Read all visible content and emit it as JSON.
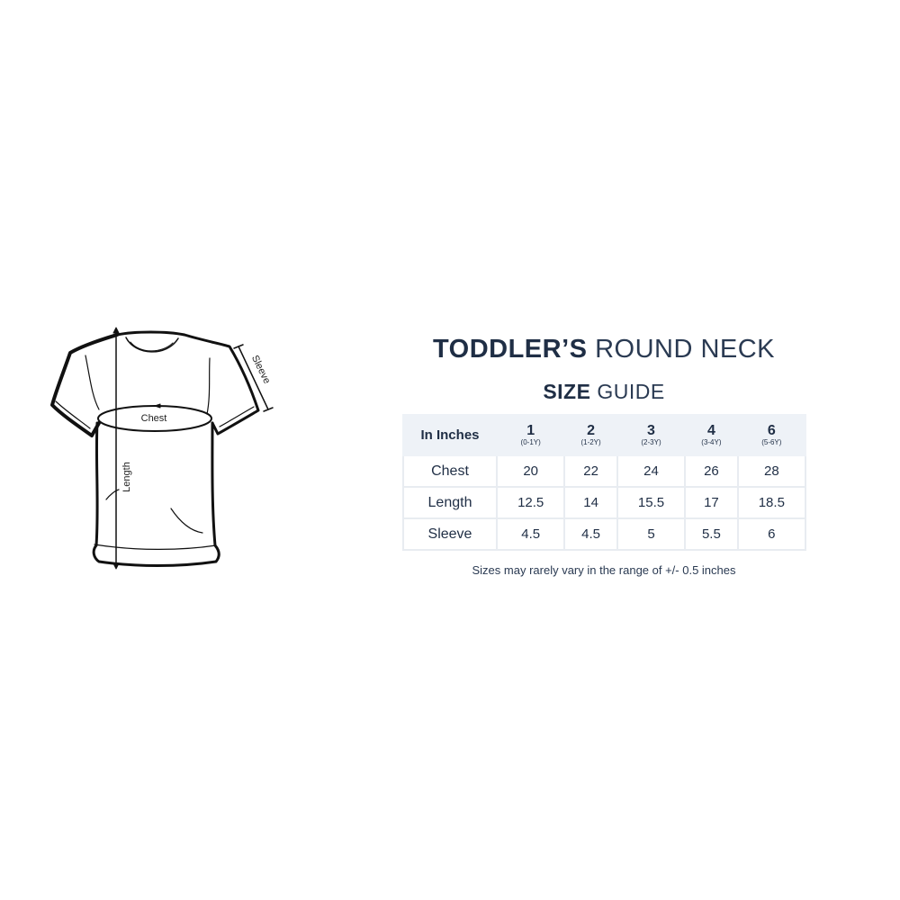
{
  "diagram": {
    "chest_label": "Chest",
    "length_label": "Length",
    "sleeve_label": "Sleeve"
  },
  "title": {
    "bold": "TODDLER’S",
    "light": "ROUND NECK"
  },
  "subtitle": {
    "bold": "SIZE",
    "light": "GUIDE"
  },
  "table": {
    "header": "In Inches",
    "sizes": [
      {
        "size": "1",
        "age": "(0-1Y)"
      },
      {
        "size": "2",
        "age": "(1-2Y)"
      },
      {
        "size": "3",
        "age": "(2-3Y)"
      },
      {
        "size": "4",
        "age": "(3-4Y)"
      },
      {
        "size": "6",
        "age": "(5-6Y)"
      }
    ],
    "rows": [
      {
        "label": "Chest",
        "values": [
          "20",
          "22",
          "24",
          "26",
          "28"
        ]
      },
      {
        "label": "Length",
        "values": [
          "12.5",
          "14",
          "15.5",
          "17",
          "18.5"
        ]
      },
      {
        "label": "Sleeve",
        "values": [
          "4.5",
          "4.5",
          "5",
          "5.5",
          "6"
        ]
      }
    ]
  },
  "note": "Sizes may rarely vary in the range of +/- 0.5 inches",
  "colors": {
    "text": "#1f2e45",
    "header_bg": "#eef2f7",
    "border": "#e8ecf1"
  }
}
